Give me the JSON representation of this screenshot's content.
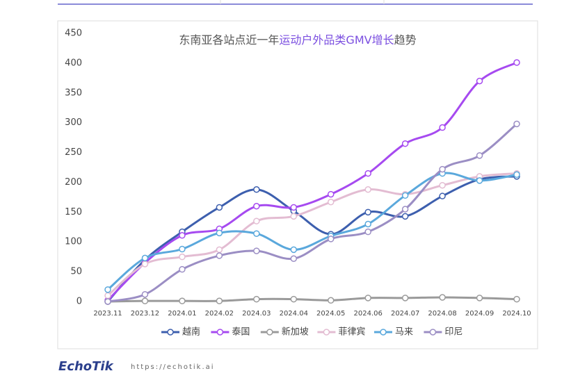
{
  "chart_data": {
    "type": "line",
    "title": [
      "东南亚各站点近一年",
      "运动户外品类GMV增长",
      "趋势"
    ],
    "title_colors": [
      "#555555",
      "#7b4fe0",
      "#555555"
    ],
    "categories": [
      "2023.11",
      "2023.12",
      "2024.01",
      "2024.02",
      "2024.03",
      "2024.04",
      "2024.05",
      "2024.06",
      "2024.07",
      "2024.08",
      "2024.09",
      "2024.10"
    ],
    "series": [
      {
        "name": "越南",
        "color": "#3d5fae",
        "values": [
          0,
          70,
          117,
          158,
          188,
          152,
          113,
          150,
          143,
          177,
          205,
          210
        ]
      },
      {
        "name": "泰国",
        "color": "#a64af0",
        "values": [
          2,
          65,
          111,
          122,
          160,
          158,
          180,
          215,
          265,
          292,
          370,
          401
        ]
      },
      {
        "name": "新加坡",
        "color": "#9a9a9a",
        "values": [
          0,
          1,
          1,
          1,
          4,
          4,
          2,
          6,
          6,
          7,
          6,
          4
        ]
      },
      {
        "name": "菲律宾",
        "color": "#e3bcd2",
        "values": [
          10,
          63,
          75,
          87,
          135,
          143,
          167,
          188,
          180,
          195,
          210,
          215
        ]
      },
      {
        "name": "马来",
        "color": "#5aa8dc",
        "values": [
          20,
          73,
          88,
          115,
          114,
          87,
          110,
          130,
          178,
          215,
          203,
          213
        ]
      },
      {
        "name": "印尼",
        "color": "#9b8ec4",
        "values": [
          0,
          12,
          54,
          77,
          85,
          72,
          105,
          117,
          155,
          222,
          245,
          298
        ]
      }
    ],
    "ylim": [
      0,
      450
    ],
    "yticks": [
      0,
      50,
      100,
      150,
      200,
      250,
      300,
      350,
      400,
      450
    ],
    "grid": false,
    "legend": "bottom"
  },
  "footer": {
    "logo": "EchoTik",
    "url": "https://echotik.ai"
  }
}
